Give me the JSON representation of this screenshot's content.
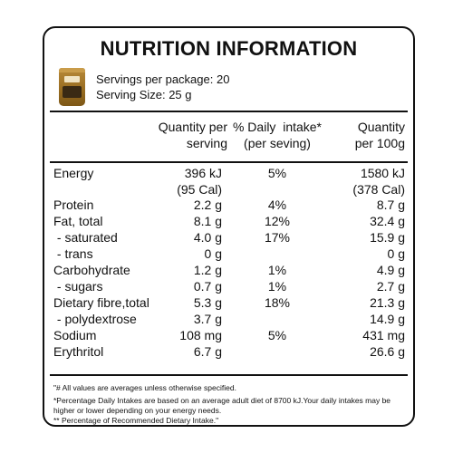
{
  "title": "NUTRITION INFORMATION",
  "servings": {
    "per_package": "Servings per package: 20",
    "size": "Serving Size: 25 g"
  },
  "columns": {
    "quantity_serving": [
      "Quantity per",
      "serving"
    ],
    "daily_intake": [
      "% Daily  intake*",
      "(per seving)"
    ],
    "quantity_100g": [
      "Quantity",
      "per 100g"
    ]
  },
  "rows": [
    {
      "name": "Energy",
      "per_serving": "396 kJ",
      "daily": "5%",
      "per_100g": "1580 kJ"
    },
    {
      "name": "",
      "per_serving": "(95 Cal)",
      "daily": "",
      "per_100g": "(378 Cal)"
    },
    {
      "name": "Protein",
      "per_serving": "2.2 g",
      "daily": "4%",
      "per_100g": "8.7 g"
    },
    {
      "name": "Fat, total",
      "per_serving": "8.1 g",
      "daily": "12%",
      "per_100g": "32.4 g"
    },
    {
      "name": " - saturated",
      "per_serving": "4.0 g",
      "daily": "17%",
      "per_100g": "15.9 g"
    },
    {
      "name": " - trans",
      "per_serving": "0 g",
      "daily": "",
      "per_100g": "0 g"
    },
    {
      "name": "Carbohydrate",
      "per_serving": "1.2 g",
      "daily": "1%",
      "per_100g": "4.9 g"
    },
    {
      "name": " - sugars",
      "per_serving": "0.7 g",
      "daily": "1%",
      "per_100g": "2.7 g"
    },
    {
      "name": "Dietary fibre,total",
      "per_serving": "5.3 g",
      "daily": "18%",
      "per_100g": "21.3 g"
    },
    {
      "name": " - polydextrose",
      "per_serving": "3.7 g",
      "daily": "",
      "per_100g": "14.9 g"
    },
    {
      "name": "Sodium",
      "per_serving": "108 mg",
      "daily": "5%",
      "per_100g": "431 mg"
    },
    {
      "name": "Erythritol",
      "per_serving": "6.7 g",
      "daily": "",
      "per_100g": "26.6 g"
    }
  ],
  "footnotes": {
    "f1": "\"# All values are averages unless otherwise specified.",
    "f2": "*Percentage Daily Intakes are based on an average adult diet of 8700 kJ.Your daily intakes may be higher or lower depending on your energy needs.",
    "f3": "** Percentage of Recommended Dietary Intake.\""
  },
  "icons": {
    "product": "product-package-icon"
  }
}
